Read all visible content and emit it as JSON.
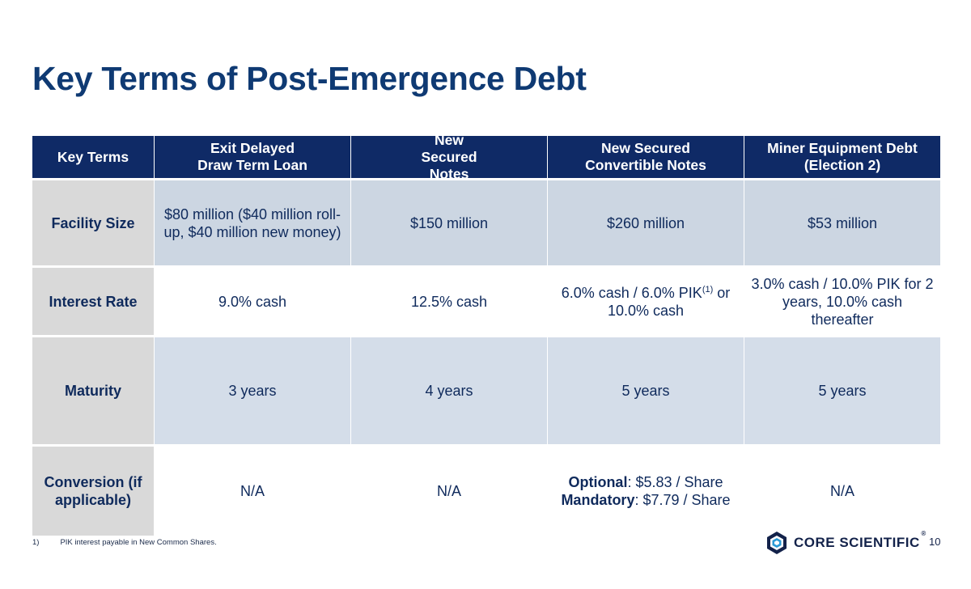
{
  "title": "Key Terms of Post-Emergence Debt",
  "table": {
    "headers": [
      "Key Terms",
      "Exit Delayed Draw Term Loan",
      "New Secured Notes",
      "New Secured Convertible Notes",
      "Miner Equipment Debt (Election 2)"
    ],
    "rows": [
      {
        "label": "Facility Size",
        "cells": [
          "$80 million ($40 million roll-up, $40 million new money)",
          "$150 million",
          "$260 million",
          "$53 million"
        ]
      },
      {
        "label": "Interest Rate",
        "cells": [
          "9.0% cash",
          "12.5% cash",
          "6.0% cash / 6.0% PIK",
          "3.0% cash / 10.0% PIK for 2 years, 10.0% cash thereafter"
        ],
        "convertible_sup": "(1)",
        "convertible_rest": " or 10.0% cash"
      },
      {
        "label": "Maturity",
        "cells": [
          "3 years",
          "4 years",
          "5 years",
          "5 years"
        ]
      },
      {
        "label": "Conversion (if applicable)",
        "cells": [
          "N/A",
          "N/A",
          "",
          "N/A"
        ],
        "optional_label": "Optional",
        "optional_value": ": $5.83 / Share",
        "mandatory_label": "Mandatory",
        "mandatory_value": ": $7.79 / Share"
      }
    ]
  },
  "footnote": {
    "marker": "1)",
    "text": "PIK interest payable in New Common Shares."
  },
  "logo": {
    "text": "CORE SCIENTIFIC",
    "reg": "®"
  },
  "page_number": "10",
  "colors": {
    "title": "#0f3a73",
    "header_bg": "#0f2a66",
    "label_bg": "#d9d9d9",
    "row_light": "#ccd6e2",
    "row_pale": "#d4dde9"
  }
}
